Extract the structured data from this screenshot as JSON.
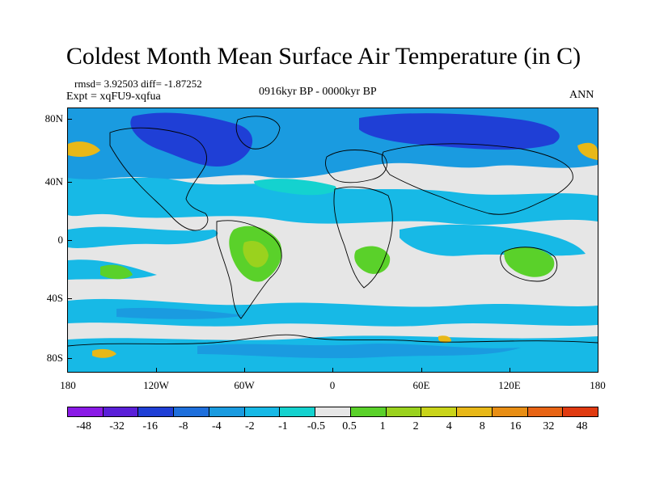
{
  "title": "Coldest Month Mean Surface Air Temperature (in C)",
  "stats_text": "rmsd= 3.92503  diff= -1.87252",
  "experiment_text": "Expt = xqFU9-xqfua",
  "period_text": "0916kyr BP - 0000kyr BP",
  "season_text": "ANN",
  "lat_ticks": [
    "80N",
    "40N",
    "0",
    "40S",
    "80S"
  ],
  "lon_ticks": [
    "180",
    "120W",
    "60W",
    "0",
    "60E",
    "120E",
    "180"
  ],
  "colorbar": {
    "colors": [
      "#8a1ae6",
      "#5a1fd8",
      "#1f3fd6",
      "#1e6fdc",
      "#1a9be0",
      "#17b9e6",
      "#14d2cf",
      "#e6e6e6",
      "#5ad12a",
      "#9ad21e",
      "#c9d41a",
      "#e8b818",
      "#e88e14",
      "#e86414",
      "#e03a10"
    ],
    "labels": [
      "-48",
      "-32",
      "-16",
      "-8",
      "-4",
      "-2",
      "-1",
      "-0.5",
      "0.5",
      "1",
      "2",
      "4",
      "8",
      "16",
      "32",
      "48"
    ]
  },
  "map_colors": {
    "neutral": "#e6e6e6",
    "light_cyan": "#14d2cf",
    "cyan": "#17b9e6",
    "light_blue": "#1a9be0",
    "blue": "#1e6fdc",
    "dark_blue": "#1f3fd6",
    "green": "#5ad12a",
    "yellow_green": "#9ad21e",
    "orange": "#e8b818",
    "coast": "#000000"
  }
}
